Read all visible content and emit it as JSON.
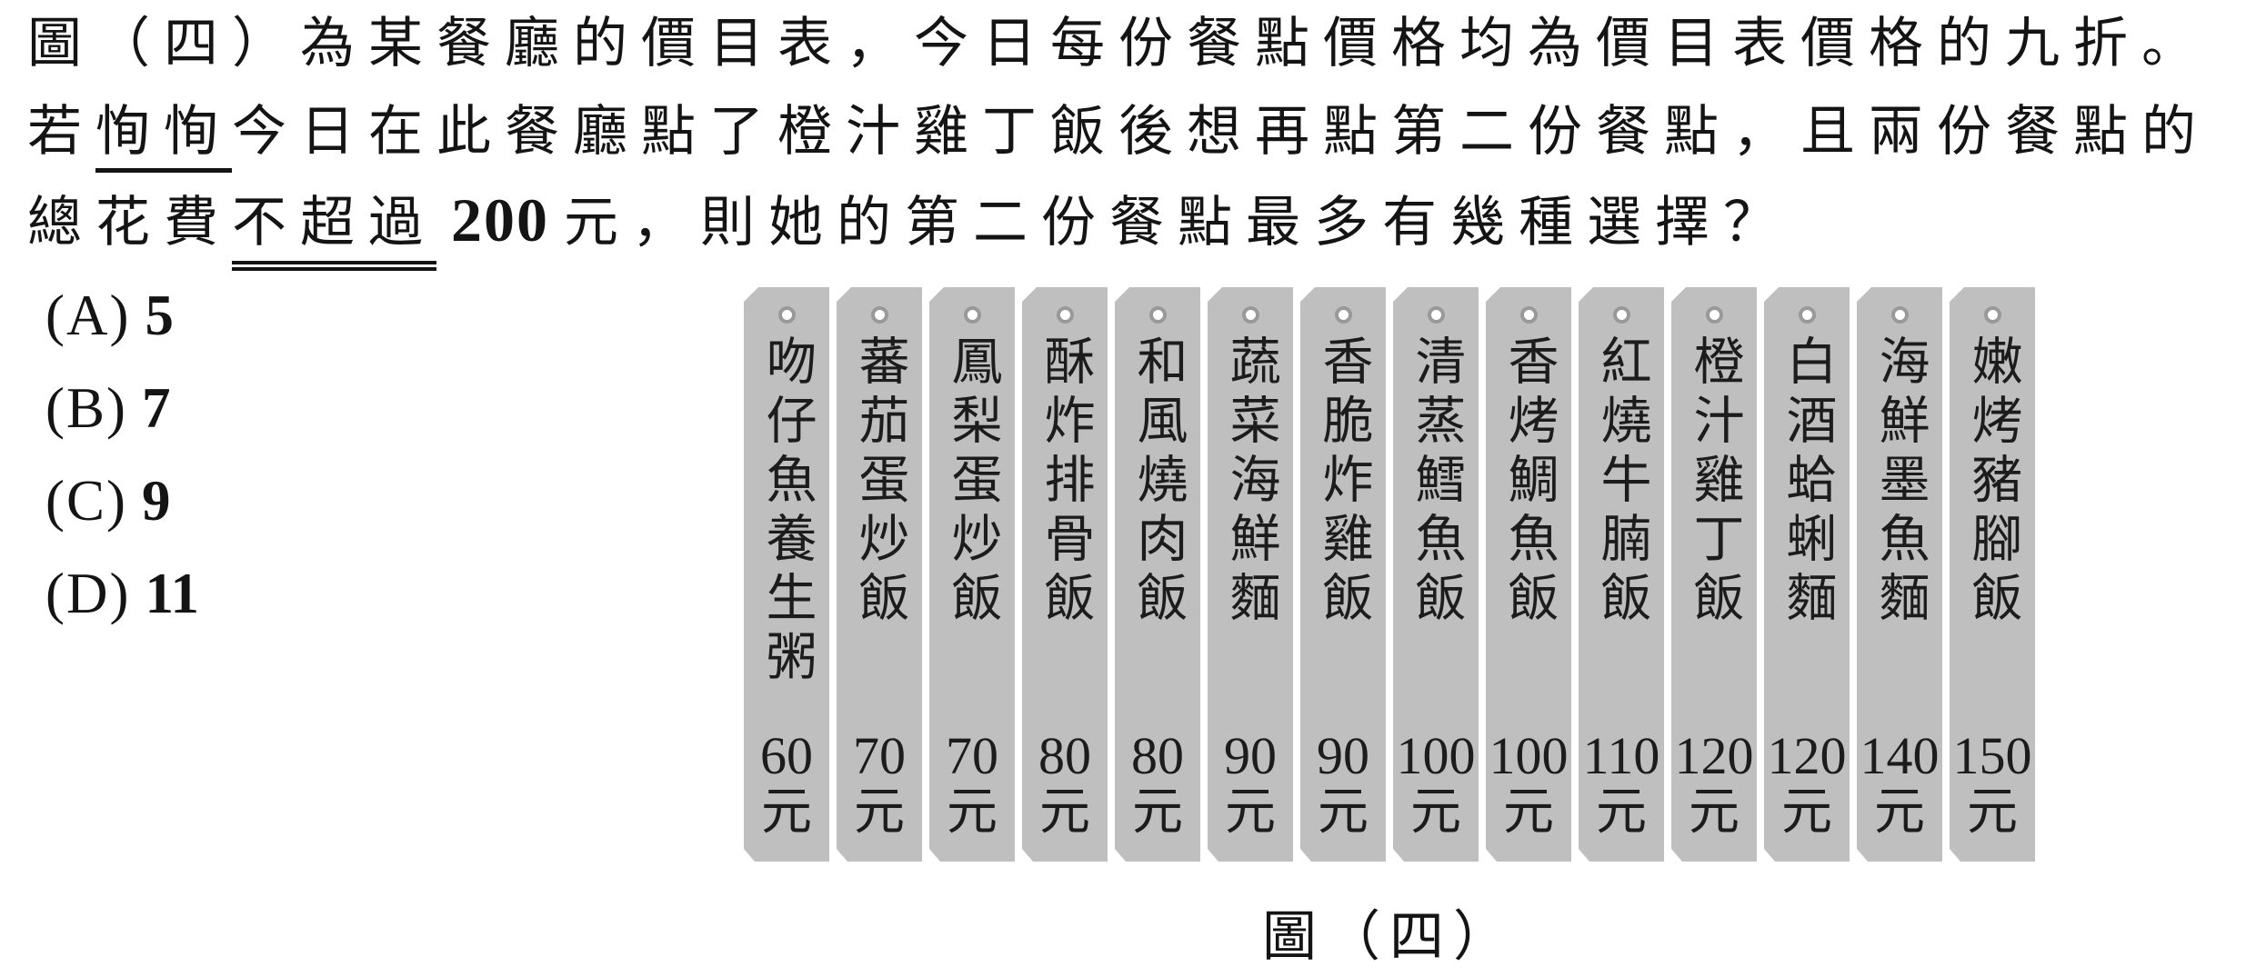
{
  "question": {
    "line1": "圖（四）為某餐廳的價目表，今日每份餐點價格均為價目表價格的九折。",
    "line2": {
      "prefix": "若",
      "name": "恂恂",
      "rest": "今日在此餐廳點了橙汁雞丁飯後想再點第二份餐點，且兩份餐點的"
    },
    "line3": {
      "prefix": "總花費",
      "underlined": "不超過",
      "amount": "200",
      "rest": "元，則她的第二份餐點最多有幾種選擇？"
    }
  },
  "options": [
    {
      "label": "(A)",
      "value": "5"
    },
    {
      "label": "(B)",
      "value": "7"
    },
    {
      "label": "(C)",
      "value": "9"
    },
    {
      "label": "(D)",
      "value": "11"
    }
  ],
  "figure": {
    "caption": "圖（四）",
    "price_unit": "元",
    "items": [
      {
        "name": "吻仔魚養生粥",
        "price": "60"
      },
      {
        "name": "蕃茄蛋炒飯",
        "price": "70"
      },
      {
        "name": "鳳梨蛋炒飯",
        "price": "70"
      },
      {
        "name": "酥炸排骨飯",
        "price": "80"
      },
      {
        "name": "和風燒肉飯",
        "price": "80"
      },
      {
        "name": "蔬菜海鮮麵",
        "price": "90"
      },
      {
        "name": "香脆炸雞飯",
        "price": "90"
      },
      {
        "name": "清蒸鱈魚飯",
        "price": "100"
      },
      {
        "name": "香烤鯛魚飯",
        "price": "100"
      },
      {
        "name": "紅燒牛腩飯",
        "price": "110"
      },
      {
        "name": "橙汁雞丁飯",
        "price": "120"
      },
      {
        "name": "白酒蛤蜊麵",
        "price": "120"
      },
      {
        "name": "海鮮墨魚麵",
        "price": "140"
      },
      {
        "name": "嫩烤豬腳飯",
        "price": "150"
      }
    ]
  },
  "colors": {
    "tag_fill": "#bfbfbf",
    "tag_hole_ring": "#999999",
    "text": "#141414",
    "background": "#ffffff"
  }
}
